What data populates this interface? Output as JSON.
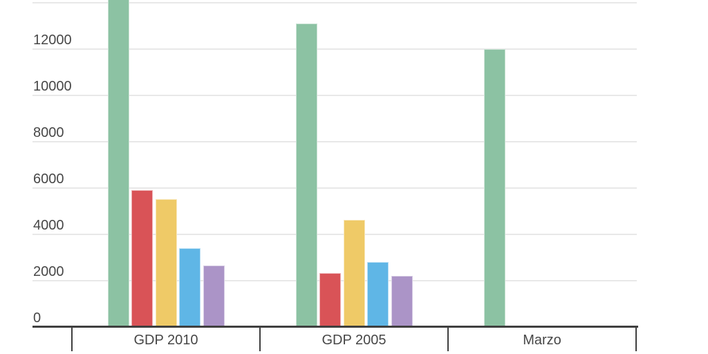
{
  "chart_data": {
    "type": "bar",
    "title": "",
    "xlabel": "",
    "ylabel": "",
    "categories": [
      "GDP 2010",
      "GDP 2005",
      "Marzo"
    ],
    "series": [
      {
        "name": "green",
        "color": "#8cc2a3",
        "values": [
          14800,
          13100,
          12000
        ]
      },
      {
        "name": "red",
        "color": "#d95357",
        "values": [
          5900,
          2300,
          0
        ]
      },
      {
        "name": "yellow",
        "color": "#efca67",
        "values": [
          5500,
          4600,
          0
        ]
      },
      {
        "name": "blue",
        "color": "#5fb6e6",
        "values": [
          3400,
          2800,
          0
        ]
      },
      {
        "name": "purple",
        "color": "#ab94c7",
        "values": [
          2650,
          2200,
          0
        ]
      }
    ],
    "y_axis": {
      "tick_labels": [
        "0",
        "2000",
        "4000",
        "6000",
        "8000",
        "10000",
        "12000"
      ],
      "tick_values": [
        0,
        2000,
        4000,
        6000,
        8000,
        10000,
        12000
      ],
      "gridline_values": [
        2000,
        4000,
        6000,
        8000,
        10000,
        12000,
        14000
      ],
      "visible_range": [
        0,
        14200
      ]
    },
    "legend": "none",
    "grid": true,
    "notes": "Tallest green bar (GDP 2010) is clipped by the top edge of the screenshot; its value is estimated. Y-axis labels sit slightly above their gridlines. Only the green series has a non-zero bar in the Marzo category."
  },
  "colors": {
    "background": "#ffffff",
    "gridline": "#e8e8e8",
    "axis": "#3f3f3f",
    "label_text": "#474747"
  }
}
